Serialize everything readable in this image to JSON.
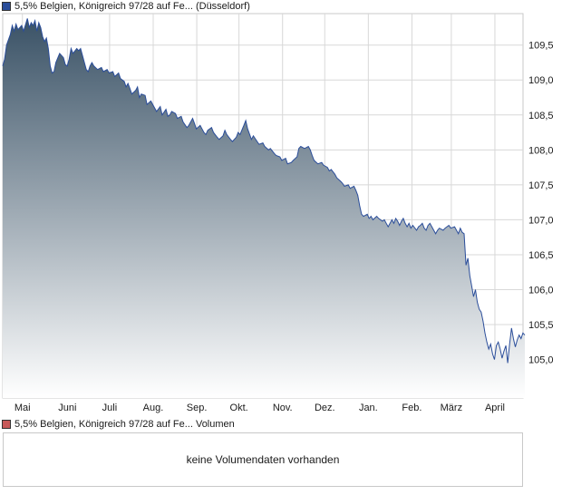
{
  "colors": {
    "price_swatch": "#2a4d9a",
    "volume_swatch": "#c85a5a",
    "price_line": "#2a4d9a",
    "area_top": "#3a5266",
    "area_bottom": "#ffffff",
    "grid": "#d8d8d8"
  },
  "price_legend": {
    "label": "5,5% Belgien, Königreich 97/28 auf Fe... (Düsseldorf)"
  },
  "volume_legend": {
    "label": "5,5% Belgien, Königreich 97/28 auf Fe... Volumen"
  },
  "volume_panel": {
    "message": "keine Volumendaten vorhanden"
  },
  "chart_data": {
    "type": "area",
    "title": "",
    "xlabel": "",
    "ylabel": "",
    "ylim": [
      104.45,
      109.95
    ],
    "grid": true,
    "y_axis_side": "right",
    "y_ticks": [
      "109,5",
      "109,0",
      "108,5",
      "108,0",
      "107,5",
      "107,0",
      "106,5",
      "106,0",
      "105,5",
      "105,0"
    ],
    "y_tick_values": [
      109.5,
      109.0,
      108.5,
      108.0,
      107.5,
      107.0,
      106.5,
      106.0,
      105.5,
      105.0
    ],
    "x_ticks": [
      "Mai",
      "Juni",
      "Juli",
      "Aug.",
      "Sep.",
      "Okt.",
      "Nov.",
      "Dez.",
      "Jan.",
      "Feb.",
      "März",
      "April"
    ],
    "x_tick_days": [
      14,
      46,
      76,
      107,
      138,
      168,
      199,
      229,
      260,
      291,
      319,
      350
    ],
    "x_domain_days": [
      0,
      370
    ],
    "series": [
      {
        "points": [
          [
            0,
            109.2
          ],
          [
            1,
            109.3
          ],
          [
            2,
            109.5
          ],
          [
            4,
            109.65
          ],
          [
            5,
            109.78
          ],
          [
            6,
            109.7
          ],
          [
            7,
            109.8
          ],
          [
            8,
            109.72
          ],
          [
            10,
            109.78
          ],
          [
            11,
            109.7
          ],
          [
            13,
            109.88
          ],
          [
            14,
            109.75
          ],
          [
            15,
            109.82
          ],
          [
            16,
            109.78
          ],
          [
            17,
            109.85
          ],
          [
            18,
            109.7
          ],
          [
            19,
            109.82
          ],
          [
            20,
            109.75
          ],
          [
            21,
            109.62
          ],
          [
            22,
            109.55
          ],
          [
            23,
            109.6
          ],
          [
            24,
            109.45
          ],
          [
            25,
            109.2
          ],
          [
            26,
            109.1
          ],
          [
            27,
            109.12
          ],
          [
            28,
            109.25
          ],
          [
            30,
            109.38
          ],
          [
            32,
            109.32
          ],
          [
            33,
            109.22
          ],
          [
            34,
            109.2
          ],
          [
            35,
            109.3
          ],
          [
            36,
            109.45
          ],
          [
            37,
            109.38
          ],
          [
            39,
            109.45
          ],
          [
            40,
            109.42
          ],
          [
            41,
            109.45
          ],
          [
            42,
            109.35
          ],
          [
            43,
            109.25
          ],
          [
            44,
            109.15
          ],
          [
            45,
            109.12
          ],
          [
            46,
            109.2
          ],
          [
            47,
            109.25
          ],
          [
            48,
            109.2
          ],
          [
            50,
            109.15
          ],
          [
            52,
            109.18
          ],
          [
            53,
            109.12
          ],
          [
            55,
            109.15
          ],
          [
            56,
            109.1
          ],
          [
            58,
            109.12
          ],
          [
            59,
            109.05
          ],
          [
            61,
            109.1
          ],
          [
            62,
            109.02
          ],
          [
            64,
            108.98
          ],
          [
            65,
            108.9
          ],
          [
            66,
            108.95
          ],
          [
            67,
            108.88
          ],
          [
            68,
            108.8
          ],
          [
            70,
            108.85
          ],
          [
            71,
            108.9
          ],
          [
            72,
            108.75
          ],
          [
            73,
            108.8
          ],
          [
            75,
            108.78
          ],
          [
            76,
            108.65
          ],
          [
            78,
            108.7
          ],
          [
            80,
            108.6
          ],
          [
            81,
            108.55
          ],
          [
            83,
            108.62
          ],
          [
            84,
            108.5
          ],
          [
            86,
            108.58
          ],
          [
            87,
            108.48
          ],
          [
            88,
            108.5
          ],
          [
            89,
            108.55
          ],
          [
            91,
            108.52
          ],
          [
            92,
            108.45
          ],
          [
            94,
            108.48
          ],
          [
            95,
            108.4
          ],
          [
            97,
            108.32
          ],
          [
            98,
            108.35
          ],
          [
            100,
            108.45
          ],
          [
            101,
            108.38
          ],
          [
            102,
            108.3
          ],
          [
            104,
            108.35
          ],
          [
            105,
            108.3
          ],
          [
            106,
            108.25
          ],
          [
            107,
            108.22
          ],
          [
            108,
            108.28
          ],
          [
            110,
            108.32
          ],
          [
            111,
            108.25
          ],
          [
            113,
            108.18
          ],
          [
            114,
            108.15
          ],
          [
            116,
            108.2
          ],
          [
            117,
            108.28
          ],
          [
            118,
            108.22
          ],
          [
            120,
            108.15
          ],
          [
            121,
            108.12
          ],
          [
            123,
            108.18
          ],
          [
            124,
            108.25
          ],
          [
            125,
            108.22
          ],
          [
            127,
            108.35
          ],
          [
            128,
            108.42
          ],
          [
            129,
            108.3
          ],
          [
            131,
            108.15
          ],
          [
            132,
            108.2
          ],
          [
            134,
            108.12
          ],
          [
            135,
            108.08
          ],
          [
            137,
            108.1
          ],
          [
            138,
            108.05
          ],
          [
            140,
            108.0
          ],
          [
            141,
            108.02
          ],
          [
            143,
            107.95
          ],
          [
            144,
            107.92
          ],
          [
            146,
            107.9
          ],
          [
            147,
            107.85
          ],
          [
            149,
            107.88
          ],
          [
            150,
            107.8
          ],
          [
            152,
            107.82
          ],
          [
            153,
            107.85
          ],
          [
            155,
            107.9
          ],
          [
            156,
            108.02
          ],
          [
            157,
            108.05
          ],
          [
            159,
            108.02
          ],
          [
            161,
            108.05
          ],
          [
            162,
            108.0
          ],
          [
            163,
            107.92
          ],
          [
            164,
            107.85
          ],
          [
            166,
            107.8
          ],
          [
            168,
            107.82
          ],
          [
            169,
            107.78
          ],
          [
            171,
            107.75
          ],
          [
            172,
            107.7
          ],
          [
            173,
            107.72
          ],
          [
            175,
            107.65
          ],
          [
            176,
            107.6
          ],
          [
            178,
            107.55
          ],
          [
            179,
            107.52
          ],
          [
            180,
            107.48
          ],
          [
            182,
            107.5
          ],
          [
            183,
            107.45
          ],
          [
            185,
            107.48
          ],
          [
            186,
            107.42
          ],
          [
            187,
            107.35
          ],
          [
            188,
            107.2
          ],
          [
            189,
            107.08
          ],
          [
            190,
            107.05
          ],
          [
            192,
            107.08
          ],
          [
            193,
            107.02
          ],
          [
            194,
            107.05
          ],
          [
            195,
            107.0
          ],
          [
            197,
            107.05
          ],
          [
            198,
            107.02
          ],
          [
            200,
            106.98
          ],
          [
            201,
            107.0
          ],
          [
            202,
            106.95
          ],
          [
            203,
            106.9
          ],
          [
            204,
            106.95
          ],
          [
            205,
            107.0
          ],
          [
            206,
            106.95
          ],
          [
            207,
            107.02
          ],
          [
            208,
            106.98
          ],
          [
            209,
            106.92
          ],
          [
            210,
            106.98
          ],
          [
            211,
            107.02
          ],
          [
            212,
            106.95
          ],
          [
            213,
            106.9
          ],
          [
            214,
            106.95
          ],
          [
            215,
            106.88
          ],
          [
            216,
            106.92
          ],
          [
            218,
            106.85
          ],
          [
            219,
            106.9
          ],
          [
            220,
            106.92
          ],
          [
            221,
            106.95
          ],
          [
            222,
            106.88
          ],
          [
            223,
            106.85
          ],
          [
            224,
            106.92
          ],
          [
            225,
            106.95
          ],
          [
            226,
            106.9
          ],
          [
            227,
            106.85
          ],
          [
            228,
            106.8
          ],
          [
            229,
            106.85
          ],
          [
            230,
            106.88
          ],
          [
            232,
            106.85
          ],
          [
            233,
            106.88
          ],
          [
            234,
            106.9
          ],
          [
            235,
            106.92
          ],
          [
            236,
            106.88
          ],
          [
            238,
            106.9
          ],
          [
            239,
            106.85
          ],
          [
            240,
            106.8
          ],
          [
            241,
            106.88
          ],
          [
            242,
            106.82
          ],
          [
            243,
            106.8
          ],
          [
            244,
            106.35
          ],
          [
            245,
            106.45
          ],
          [
            246,
            106.2
          ],
          [
            247,
            106.05
          ],
          [
            248,
            105.9
          ],
          [
            249,
            106.0
          ],
          [
            250,
            105.82
          ],
          [
            251,
            105.72
          ],
          [
            252,
            105.68
          ],
          [
            253,
            105.55
          ],
          [
            254,
            105.38
          ],
          [
            255,
            105.25
          ],
          [
            256,
            105.15
          ],
          [
            257,
            105.22
          ],
          [
            258,
            105.08
          ],
          [
            259,
            105.0
          ],
          [
            260,
            105.2
          ],
          [
            261,
            105.25
          ],
          [
            262,
            105.15
          ],
          [
            263,
            105.02
          ],
          [
            264,
            105.12
          ],
          [
            265,
            105.2
          ],
          [
            266,
            104.95
          ],
          [
            267,
            105.22
          ],
          [
            268,
            105.45
          ],
          [
            269,
            105.3
          ],
          [
            270,
            105.18
          ],
          [
            271,
            105.28
          ],
          [
            272,
            105.35
          ],
          [
            273,
            105.3
          ],
          [
            274,
            105.38
          ],
          [
            275,
            105.35
          ]
        ]
      }
    ]
  }
}
